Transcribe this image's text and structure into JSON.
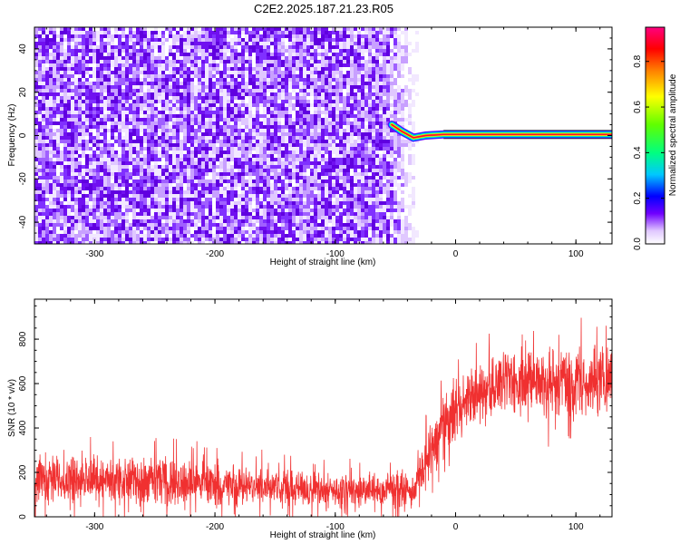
{
  "title": "C2E2.2025.187.21.23.R05",
  "chart_data": [
    {
      "type": "heatmap",
      "xlabel": "Height of straight line (km)",
      "ylabel": "Frequency (Hz)",
      "xlim": [
        -350,
        130
      ],
      "ylim": [
        -50,
        50
      ],
      "x_ticks": [
        -300,
        -200,
        -100,
        0,
        100
      ],
      "x_tick_labels": [
        "-300",
        "-200",
        "-100",
        "0",
        "100"
      ],
      "y_ticks": [
        -40,
        -20,
        0,
        20,
        40
      ],
      "y_tick_labels": [
        "-40",
        "-20",
        "0",
        "20",
        "40"
      ],
      "noise_region_km": [
        -350,
        -40
      ],
      "signal_track": [
        {
          "x": -53,
          "freq": 5
        },
        {
          "x": -45,
          "freq": 2
        },
        {
          "x": -35,
          "freq": -1
        },
        {
          "x": -25,
          "freq": 0
        },
        {
          "x": -10,
          "freq": 0.5
        },
        {
          "x": 130,
          "freq": 0.5
        }
      ],
      "colorbar": {
        "label": "Normalized spectral amplitude",
        "range": [
          0,
          0.95
        ],
        "ticks": [
          0,
          0.2,
          0.4,
          0.6,
          0.8
        ],
        "tick_labels": [
          "0.0",
          "0.2",
          "0.4",
          "0.6",
          "0.8"
        ],
        "colormap": [
          "#ffffff",
          "#7000ff",
          "#0000ff",
          "#00ffff",
          "#00ff00",
          "#ffff00",
          "#ff8000",
          "#ff0000",
          "#ff0080"
        ]
      }
    },
    {
      "type": "line",
      "xlabel": "Height of straight line (km)",
      "ylabel": "SNR (10 * v/v)",
      "xlim": [
        -350,
        130
      ],
      "ylim": [
        0,
        980
      ],
      "x_ticks": [
        -300,
        -200,
        -100,
        0,
        100
      ],
      "x_tick_labels": [
        "-300",
        "-200",
        "-100",
        "0",
        "100"
      ],
      "y_ticks": [
        0,
        200,
        400,
        600,
        800
      ],
      "y_tick_labels": [
        "0",
        "200",
        "400",
        "600",
        "800"
      ],
      "color": "#f03030",
      "envelope": [
        {
          "x": -350,
          "low": 50,
          "high": 300
        },
        {
          "x": -250,
          "low": 40,
          "high": 280
        },
        {
          "x": -150,
          "low": 30,
          "high": 230
        },
        {
          "x": -80,
          "low": 25,
          "high": 200
        },
        {
          "x": -35,
          "low": 30,
          "high": 210
        },
        {
          "x": -20,
          "low": 150,
          "high": 450
        },
        {
          "x": -10,
          "low": 250,
          "high": 550
        },
        {
          "x": 10,
          "low": 380,
          "high": 680
        },
        {
          "x": 40,
          "low": 450,
          "high": 760
        },
        {
          "x": 80,
          "low": 420,
          "high": 800
        },
        {
          "x": 130,
          "low": 450,
          "high": 800
        }
      ]
    }
  ]
}
